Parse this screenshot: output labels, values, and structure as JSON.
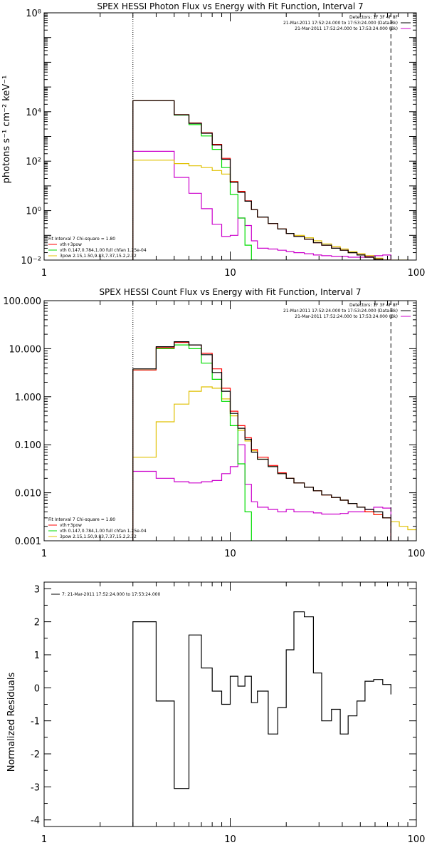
{
  "chart_data": [
    {
      "id": "photon",
      "type": "line",
      "title": "SPEX HESSI Photon Flux vs Energy with Fit Function, Interval 7",
      "xlabel": "",
      "ylabel": "photons s⁻¹ cm⁻² keV⁻¹",
      "xscale": "log",
      "yscale": "log",
      "xlim": [
        1,
        100
      ],
      "ylim": [
        0.01,
        100000000
      ],
      "x_tick_labels": [
        "1",
        "10",
        "100"
      ],
      "y_tick_labels": [
        "10⁻²",
        "10⁰",
        "10²",
        "10⁴",
        "10⁸"
      ],
      "vlines": [
        {
          "x": 3.0,
          "style": "dotted"
        },
        {
          "x": 73,
          "style": "dashed"
        }
      ],
      "legend_top": [
        "Detectors: 1F 3F 4F 8F",
        "21-Mar-2011 17:52:24.000 to 17:53:24.000 (Data-Bk)",
        "21-Mar-2011 17:52:24.000 to 17:53:24.000 (Bk)"
      ],
      "legend_bottom": [
        "Fit Interval 7   Chi-square = 1.80",
        "vth+3pow",
        "vth 0.147,0.784,1.00  full chfan 1.25e-04",
        "3pow 2.15,1.50,9.83,7.37,15.2,2.32"
      ],
      "edges": [
        3,
        4,
        5,
        6,
        7,
        8,
        9,
        10,
        11,
        12,
        13,
        14,
        16,
        18,
        20,
        22,
        25,
        28,
        31,
        35,
        39,
        43,
        48,
        53,
        59,
        66,
        73,
        81,
        90
      ],
      "series": [
        {
          "name": "Data-Bk",
          "color": "#000000",
          "values": [
            28000,
            28000,
            7500,
            3400,
            1350,
            450,
            120,
            14,
            5.5,
            2.4,
            1.1,
            0.55,
            0.3,
            0.18,
            0.12,
            0.09,
            0.07,
            0.05,
            0.04,
            0.03,
            0.025,
            0.02,
            0.016,
            0.013,
            0.011,
            0.009,
            null,
            null
          ]
        },
        {
          "name": "vth+3pow",
          "color": "#ff0000",
          "values": [
            28000,
            28000,
            7600,
            3500,
            1400,
            480,
            130,
            15,
            6,
            2.5,
            1.1,
            0.55,
            0.3,
            0.18,
            0.12,
            0.09,
            0.07,
            0.05,
            0.04,
            0.03,
            0.025,
            0.02,
            0.016,
            0.013,
            0.011,
            0.009,
            null,
            null
          ]
        },
        {
          "name": "vth",
          "color": "#00dd00",
          "values": [
            28000,
            28000,
            7300,
            3000,
            1050,
            300,
            55,
            4.5,
            0.5,
            0.04,
            0.008,
            null,
            null,
            null,
            null,
            null,
            null,
            null,
            null,
            null,
            null,
            null,
            null,
            null,
            null,
            null,
            null,
            null
          ]
        },
        {
          "name": "3pow",
          "color": "#e0c000",
          "values": [
            110,
            110,
            80,
            65,
            55,
            42,
            30,
            15,
            5.5,
            2.4,
            1.1,
            0.55,
            0.3,
            0.18,
            0.12,
            0.1,
            0.08,
            0.06,
            0.045,
            0.035,
            0.028,
            0.022,
            0.018,
            0.015,
            0.012,
            0.01,
            0.008,
            0.007
          ]
        },
        {
          "name": "Bk",
          "color": "#cc00cc",
          "values": [
            250,
            250,
            22,
            5,
            1.2,
            0.28,
            0.09,
            0.1,
            0.5,
            0.25,
            0.06,
            0.03,
            0.028,
            0.025,
            0.022,
            0.02,
            0.018,
            0.016,
            0.015,
            0.014,
            0.014,
            0.013,
            0.013,
            0.014,
            0.015,
            0.016,
            null,
            null
          ]
        }
      ]
    },
    {
      "id": "count",
      "type": "line",
      "title": "SPEX HESSI Count Flux vs Energy with Fit Function, Interval 7",
      "xlabel": "",
      "ylabel": "",
      "xscale": "log",
      "yscale": "log",
      "xlim": [
        1,
        100
      ],
      "ylim": [
        0.001,
        100
      ],
      "x_tick_labels": [
        "1",
        "10",
        "100"
      ],
      "y_tick_labels": [
        "0.001",
        "0.010",
        "0.100",
        "1.000",
        "10.000",
        "100.000"
      ],
      "vlines": [
        {
          "x": 3.0,
          "style": "dotted"
        },
        {
          "x": 73,
          "style": "dashed"
        }
      ],
      "legend_top": [
        "Detectors: 1F 3F 4F 8F",
        "21-Mar-2011 17:52:24.000 to 17:53:24.000 (Data-Bk)",
        "21-Mar-2011 17:52:24.000 to 17:53:24.000 (Bk)"
      ],
      "legend_bottom": [
        "Fit Interval 7   Chi-square = 1.80",
        "vth+3pow",
        "vth 0.147,0.784,1.00  full chfan 1.25e-04",
        "3pow 2.15,1.50,9.83,7.37,15.2,2.32"
      ],
      "edges": [
        3,
        4,
        5,
        6,
        7,
        8,
        9,
        10,
        11,
        12,
        13,
        14,
        16,
        18,
        20,
        22,
        25,
        28,
        31,
        35,
        39,
        43,
        48,
        53,
        59,
        66,
        73,
        81,
        90,
        100
      ],
      "series": [
        {
          "name": "Data-Bk",
          "color": "#000000",
          "values": [
            3.8,
            11,
            14,
            12,
            7.5,
            3.2,
            1.3,
            0.45,
            0.22,
            0.13,
            0.07,
            0.05,
            0.035,
            0.025,
            0.02,
            0.016,
            0.013,
            0.011,
            0.009,
            0.008,
            0.007,
            0.006,
            0.005,
            0.0045,
            0.004,
            0.003,
            null,
            null,
            null
          ]
        },
        {
          "name": "vth+3pow",
          "color": "#ff0000",
          "values": [
            3.6,
            10.5,
            13.5,
            12,
            8,
            3.8,
            1.5,
            0.5,
            0.25,
            0.14,
            0.08,
            0.055,
            0.037,
            0.026,
            0.02,
            0.016,
            0.013,
            0.011,
            0.009,
            0.008,
            0.007,
            0.006,
            0.005,
            0.004,
            0.0035,
            0.003,
            null,
            null,
            null
          ]
        },
        {
          "name": "vth",
          "color": "#00dd00",
          "values": [
            3.6,
            10,
            12,
            10,
            5,
            2.3,
            0.8,
            0.25,
            0.04,
            0.004,
            null,
            null,
            null,
            null,
            null,
            null,
            null,
            null,
            null,
            null,
            null,
            null,
            null,
            null,
            null,
            null,
            null,
            null,
            null
          ]
        },
        {
          "name": "3pow",
          "color": "#e0c000",
          "values": [
            0.055,
            0.3,
            0.7,
            1.3,
            1.6,
            1.5,
            0.9,
            0.4,
            0.2,
            0.12,
            0.075,
            0.05,
            0.035,
            0.025,
            0.02,
            0.016,
            0.013,
            0.011,
            0.009,
            0.008,
            0.007,
            0.006,
            0.005,
            0.004,
            0.0035,
            0.003,
            0.0025,
            0.002,
            0.0017
          ]
        },
        {
          "name": "Bk",
          "color": "#cc00cc",
          "values": [
            0.028,
            0.02,
            0.017,
            0.016,
            0.017,
            0.018,
            0.025,
            0.035,
            0.1,
            0.015,
            0.0065,
            0.005,
            0.0045,
            0.004,
            0.0045,
            0.004,
            0.004,
            0.0038,
            0.0036,
            0.0036,
            0.0037,
            0.004,
            0.004,
            0.0045,
            0.005,
            0.0048,
            null,
            null,
            null
          ]
        }
      ]
    },
    {
      "id": "resid",
      "type": "line",
      "title": "",
      "xlabel": "",
      "ylabel": "Normalized Residuals",
      "xscale": "log",
      "yscale": "linear",
      "xlim": [
        1,
        100
      ],
      "ylim": [
        -4.2,
        3.2
      ],
      "x_tick_labels": [
        "1",
        "10",
        "100"
      ],
      "y_tick_labels": [
        "-4",
        "-3",
        "-2",
        "-1",
        "0",
        "1",
        "2",
        "3"
      ],
      "legend": [
        "7: 21-Mar-2011 17:52:24.000 to 17:53:24.000"
      ],
      "edges": [
        3,
        4,
        5,
        6,
        7,
        8,
        9,
        10,
        11,
        12,
        13,
        14,
        16,
        18,
        20,
        22,
        25,
        28,
        31,
        35,
        39,
        43,
        48,
        53,
        59,
        66,
        73
      ],
      "series": [
        {
          "name": "7",
          "color": "#000000",
          "values": [
            2.0,
            -0.4,
            -3.05,
            1.6,
            0.6,
            -0.1,
            -0.5,
            0.35,
            0.05,
            0.35,
            -0.45,
            -0.1,
            -1.4,
            -0.6,
            1.15,
            2.3,
            2.15,
            0.45,
            -1.0,
            -0.65,
            -1.4,
            -0.85,
            -0.4,
            0.2,
            0.25,
            0.1,
            -0.2
          ]
        }
      ]
    }
  ]
}
